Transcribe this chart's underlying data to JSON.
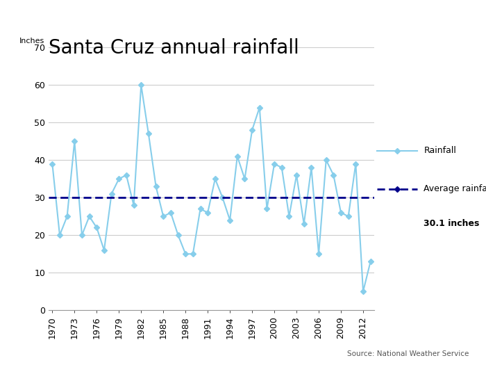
{
  "title": "Santa Cruz annual rainfall",
  "ylabel": "Inches",
  "source": "Source: National Weather Service",
  "average_label": "Average rainfall",
  "average_value": 30.1,
  "average_annotation": "30.1 inches",
  "rainfall_label": "Rainfall",
  "years": [
    1970,
    1971,
    1972,
    1973,
    1974,
    1975,
    1976,
    1977,
    1978,
    1979,
    1980,
    1981,
    1982,
    1983,
    1984,
    1985,
    1986,
    1987,
    1988,
    1989,
    1990,
    1991,
    1992,
    1993,
    1994,
    1995,
    1996,
    1997,
    1998,
    1999,
    2000,
    2001,
    2002,
    2003,
    2004,
    2005,
    2006,
    2007,
    2008,
    2009,
    2010,
    2011,
    2012,
    2013
  ],
  "rainfall": [
    39,
    20,
    25,
    45,
    20,
    25,
    22,
    16,
    31,
    35,
    36,
    28,
    60,
    47,
    33,
    25,
    26,
    20,
    15,
    15,
    27,
    26,
    35,
    30,
    24,
    41,
    35,
    48,
    54,
    27,
    39,
    38,
    25,
    36,
    23,
    38,
    15,
    40,
    36,
    26,
    25,
    39,
    5,
    13
  ],
  "ylim": [
    0,
    70
  ],
  "yticks": [
    0,
    10,
    20,
    30,
    40,
    50,
    60,
    70
  ],
  "xtick_years": [
    1970,
    1973,
    1976,
    1979,
    1982,
    1985,
    1988,
    1991,
    1994,
    1997,
    2000,
    2003,
    2006,
    2009,
    2012
  ],
  "rainfall_color": "#87CEEB",
  "average_color": "#00008B",
  "bg_color": "#ffffff",
  "header_color": "#ADD8E6",
  "title_fontsize": 20,
  "axis_fontsize": 9,
  "legend_fontsize": 9
}
